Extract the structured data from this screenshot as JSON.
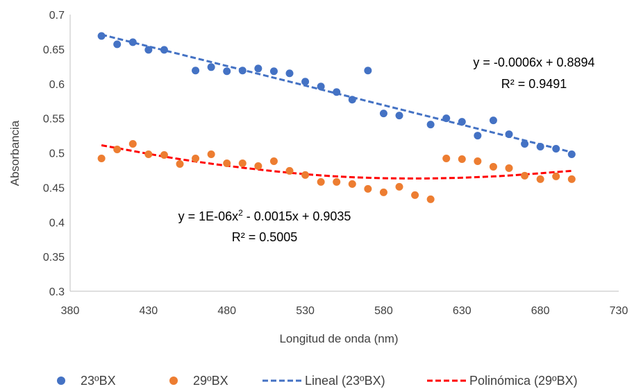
{
  "chart_data": {
    "type": "scatter",
    "xlabel": "Longitud de onda (nm)",
    "ylabel": "Absorbancia",
    "xlim": [
      380,
      730
    ],
    "ylim": [
      0.3,
      0.7
    ],
    "xticks": [
      "380",
      "430",
      "480",
      "530",
      "580",
      "630",
      "680",
      "730"
    ],
    "yticks": [
      "0.3",
      "0.35",
      "0.4",
      "0.45",
      "0.5",
      "0.55",
      "0.6",
      "0.65",
      "0.7"
    ],
    "grid": false,
    "legend_position": "bottom",
    "colors": {
      "series_23": "#4472c4",
      "series_29": "#ed7d31",
      "trend_23": "#4472c4",
      "trend_29": "#ff0000"
    },
    "series": [
      {
        "name": "23ºBX",
        "x": [
          400,
          410,
          420,
          430,
          440,
          460,
          470,
          480,
          490,
          500,
          510,
          520,
          530,
          540,
          550,
          560,
          570,
          580,
          590,
          610,
          620,
          630,
          640,
          650,
          660,
          670,
          680,
          690,
          700
        ],
        "y": [
          0.669,
          0.657,
          0.66,
          0.649,
          0.649,
          0.619,
          0.624,
          0.618,
          0.619,
          0.622,
          0.618,
          0.615,
          0.603,
          0.596,
          0.588,
          0.577,
          0.619,
          0.557,
          0.554,
          0.541,
          0.55,
          0.545,
          0.525,
          0.547,
          0.527,
          0.513,
          0.509,
          0.506,
          0.498
        ]
      },
      {
        "name": "29ºBX",
        "x": [
          400,
          410,
          420,
          430,
          440,
          450,
          460,
          470,
          480,
          490,
          500,
          510,
          520,
          530,
          540,
          550,
          560,
          570,
          580,
          590,
          600,
          610,
          620,
          630,
          640,
          650,
          660,
          670,
          680,
          690,
          700
        ],
        "y": [
          0.492,
          0.505,
          0.513,
          0.498,
          0.497,
          0.484,
          0.492,
          0.498,
          0.485,
          0.485,
          0.481,
          0.488,
          0.474,
          0.468,
          0.458,
          0.458,
          0.455,
          0.448,
          0.443,
          0.451,
          0.439,
          0.433,
          0.492,
          0.491,
          0.488,
          0.48,
          0.478,
          0.467,
          0.462,
          0.466,
          0.462
        ]
      }
    ],
    "trendlines": [
      {
        "name": "Lineal (23ºBX)",
        "kind": "linear",
        "x_range": [
          400,
          700
        ],
        "y_range": [
          0.671,
          0.501
        ],
        "equation": "y = -0.0006x + 0.8894",
        "r2": "R² = 0.9491"
      },
      {
        "name": "Polinómica (29ºBX)",
        "kind": "polynomial",
        "x_range": [
          400,
          700
        ],
        "points_x": [
          400,
          450,
          500,
          550,
          600,
          650,
          700
        ],
        "points_y": [
          0.511,
          0.491,
          0.476,
          0.466,
          0.463,
          0.466,
          0.474
        ],
        "equation_prefix": "y = 1E-06x",
        "equation_exp": "2",
        "equation_suffix": " - 0.0015x + 0.9035",
        "r2": "R² = 0.5005"
      }
    ]
  }
}
